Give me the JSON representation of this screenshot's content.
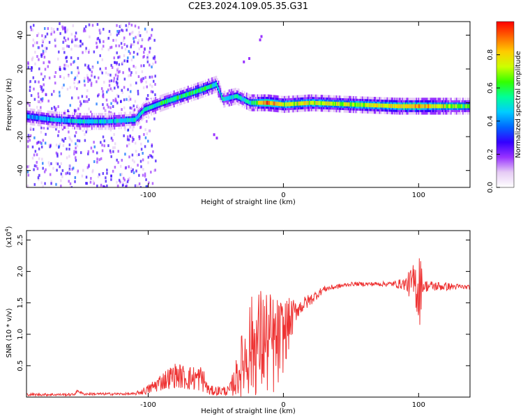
{
  "title": "C2E3.2024.109.05.35.G31",
  "colors": {
    "snr_line": "#ee3333",
    "colormap": [
      "#ffffff",
      "#e6ccf5",
      "#9933ff",
      "#3300ff",
      "#0066ff",
      "#00ccff",
      "#00ff99",
      "#33ff00",
      "#ccff00",
      "#ffcc00",
      "#ff6600",
      "#ff0000"
    ]
  },
  "chart_data": [
    {
      "type": "heatmap",
      "xlabel": "Height of straight line (km)",
      "ylabel": "Frequency (Hz)",
      "xlim": [
        -190,
        138
      ],
      "ylim": [
        -50,
        48
      ],
      "xticks": [
        {
          "v": -100,
          "label": "-100"
        },
        {
          "v": 0,
          "label": "0"
        },
        {
          "v": 100,
          "label": "100"
        }
      ],
      "yticks": [
        {
          "v": -40,
          "label": "-40"
        },
        {
          "v": -20,
          "label": "-20"
        },
        {
          "v": 0,
          "label": "0"
        },
        {
          "v": 20,
          "label": "20"
        },
        {
          "v": 40,
          "label": "40"
        }
      ],
      "ridge": [
        {
          "x": -190,
          "y": -8,
          "a": 0.4
        },
        {
          "x": -170,
          "y": -10,
          "a": 0.45
        },
        {
          "x": -150,
          "y": -11,
          "a": 0.5
        },
        {
          "x": -130,
          "y": -11,
          "a": 0.45
        },
        {
          "x": -110,
          "y": -10,
          "a": 0.5
        },
        {
          "x": -103,
          "y": -4,
          "a": 0.5
        },
        {
          "x": -90,
          "y": 0,
          "a": 0.55
        },
        {
          "x": -75,
          "y": 4,
          "a": 0.55
        },
        {
          "x": -60,
          "y": 8,
          "a": 0.6
        },
        {
          "x": -50,
          "y": 11,
          "a": 0.5
        },
        {
          "x": -45,
          "y": 2,
          "a": 0.45
        },
        {
          "x": -35,
          "y": 4,
          "a": 0.5
        },
        {
          "x": -25,
          "y": 0,
          "a": 0.5
        },
        {
          "x": -12,
          "y": 0,
          "a": 0.95
        },
        {
          "x": 0,
          "y": -1,
          "a": 0.7
        },
        {
          "x": 20,
          "y": 0,
          "a": 0.75
        },
        {
          "x": 50,
          "y": -1,
          "a": 0.7
        },
        {
          "x": 85,
          "y": -2,
          "a": 0.8
        },
        {
          "x": 100,
          "y": -2,
          "a": 0.85
        },
        {
          "x": 138,
          "y": -2,
          "a": 0.6
        }
      ],
      "colorbar": {
        "label": "Normalized spectral amplitude",
        "range": [
          0,
          1
        ],
        "ticks": [
          {
            "v": 0,
            "label": "0.0"
          },
          {
            "v": 0.2,
            "label": "0.2"
          },
          {
            "v": 0.4,
            "label": "0.4"
          },
          {
            "v": 0.6,
            "label": "0.6"
          },
          {
            "v": 0.8,
            "label": "0.8"
          }
        ]
      }
    },
    {
      "type": "line",
      "xlabel": "Height of straight line (km)",
      "ylabel": "SNR (10 * v/v)",
      "yexponent_label": "(x10",
      "yexponent_power": "4",
      "yexponent_close": ")",
      "xlim": [
        -190,
        138
      ],
      "ylim": [
        0,
        2.65
      ],
      "xticks": [
        {
          "v": -100,
          "label": "-100"
        },
        {
          "v": 0,
          "label": "0"
        },
        {
          "v": 100,
          "label": "100"
        }
      ],
      "yticks": [
        {
          "v": 0.5,
          "label": "0.5"
        },
        {
          "v": 1.0,
          "label": "1.0"
        },
        {
          "v": 1.5,
          "label": "1.5"
        },
        {
          "v": 2.0,
          "label": "2.0"
        },
        {
          "v": 2.5,
          "label": "2.5"
        }
      ],
      "envelope": [
        {
          "x": -190,
          "base": 0.04,
          "amp": 0.02
        },
        {
          "x": -155,
          "base": 0.04,
          "amp": 0.02
        },
        {
          "x": -152,
          "base": 0.1,
          "amp": 0.02
        },
        {
          "x": -148,
          "base": 0.05,
          "amp": 0.02
        },
        {
          "x": -110,
          "base": 0.05,
          "amp": 0.02
        },
        {
          "x": -100,
          "base": 0.12,
          "amp": 0.08
        },
        {
          "x": -90,
          "base": 0.25,
          "amp": 0.15
        },
        {
          "x": -80,
          "base": 0.35,
          "amp": 0.2
        },
        {
          "x": -70,
          "base": 0.3,
          "amp": 0.2
        },
        {
          "x": -60,
          "base": 0.3,
          "amp": 0.22
        },
        {
          "x": -55,
          "base": 0.1,
          "amp": 0.08
        },
        {
          "x": -40,
          "base": 0.1,
          "amp": 0.08
        },
        {
          "x": -35,
          "base": 0.3,
          "amp": 0.3
        },
        {
          "x": -25,
          "base": 0.8,
          "amp": 0.8
        },
        {
          "x": -15,
          "base": 0.9,
          "amp": 0.9
        },
        {
          "x": -5,
          "base": 0.8,
          "amp": 0.8
        },
        {
          "x": 0,
          "base": 1.0,
          "amp": 0.6
        },
        {
          "x": 10,
          "base": 1.4,
          "amp": 0.15
        },
        {
          "x": 20,
          "base": 1.55,
          "amp": 0.1
        },
        {
          "x": 30,
          "base": 1.72,
          "amp": 0.05
        },
        {
          "x": 50,
          "base": 1.8,
          "amp": 0.03
        },
        {
          "x": 80,
          "base": 1.8,
          "amp": 0.04
        },
        {
          "x": 90,
          "base": 1.8,
          "amp": 0.1
        },
        {
          "x": 98,
          "base": 1.8,
          "amp": 0.4
        },
        {
          "x": 100,
          "base": 1.8,
          "amp": 0.9
        },
        {
          "x": 103,
          "base": 1.77,
          "amp": 0.1
        },
        {
          "x": 138,
          "base": 1.75,
          "amp": 0.03
        }
      ]
    }
  ]
}
